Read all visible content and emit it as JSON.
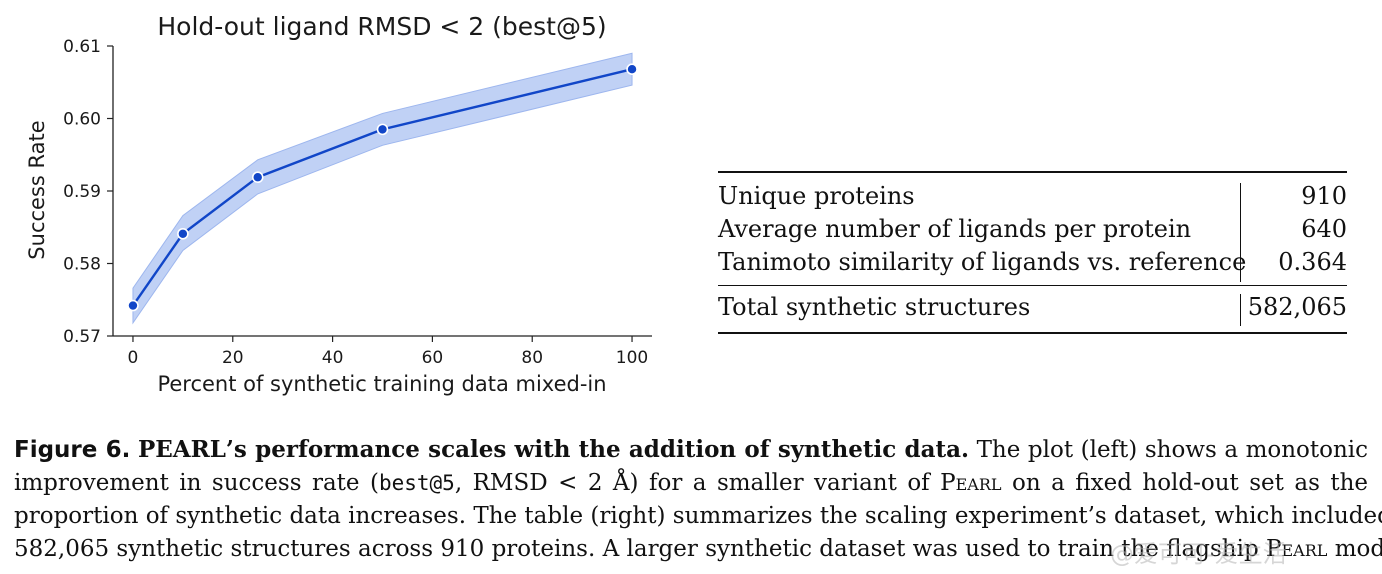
{
  "chart_data": {
    "type": "line",
    "title": "Hold-out ligand RMSD < 2 (best@5)",
    "xlabel": "Percent of synthetic training data mixed-in",
    "ylabel": "Success Rate",
    "x": [
      0,
      10,
      25,
      50,
      100
    ],
    "series": [
      {
        "name": "Success Rate",
        "values": [
          0.5742,
          0.5841,
          0.5919,
          0.5985,
          0.6068
        ],
        "ci_lower": [
          0.5718,
          0.5818,
          0.5896,
          0.5963,
          0.6046
        ],
        "ci_upper": [
          0.5766,
          0.5866,
          0.5943,
          0.6007,
          0.609
        ]
      }
    ],
    "xlim": [
      -4,
      104
    ],
    "ylim": [
      0.57,
      0.61
    ],
    "xticks": [
      "0",
      "20",
      "40",
      "60",
      "80",
      "100"
    ],
    "yticks": [
      "0.57",
      "0.58",
      "0.59",
      "0.60",
      "0.61"
    ],
    "colors": {
      "line": "#1146c8",
      "band": "#b5c9f3",
      "marker_edge": "#ffffff"
    },
    "grid": false
  },
  "table": {
    "rows": [
      {
        "label": "Unique proteins",
        "value": "910"
      },
      {
        "label": "Average number of ligands per protein",
        "value": "640"
      },
      {
        "label": "Tanimoto similarity of ligands vs. reference",
        "value": "0.364"
      }
    ],
    "total": {
      "label": "Total synthetic structures",
      "value": "582,065"
    }
  },
  "caption": {
    "label": "Figure 6.",
    "title_pre": "P",
    "title_brand_rest": "EARL",
    "title_post": "’s performance scales with the addition of synthetic data.",
    "l1_rest": "The plot (left) shows a monotonic",
    "l2_pre": "improvement in success rate (",
    "l2_code": "best@5",
    "l2_mid": ", RMSD < 2 Å) for a smaller variant of ",
    "brand": "Pearl",
    "l2_post": " on a fixed hold-out set as the",
    "l3": "proportion of synthetic data increases. The table (right) summarizes the scaling experiment’s dataset, which included",
    "l4_pre": "582,065 synthetic structures across 910 proteins. A larger synthetic dataset was used to train the flagship ",
    "l4_brand": "Pearl",
    "l4_post": " model"
  },
  "watermark": "@爱可可-爱生活"
}
